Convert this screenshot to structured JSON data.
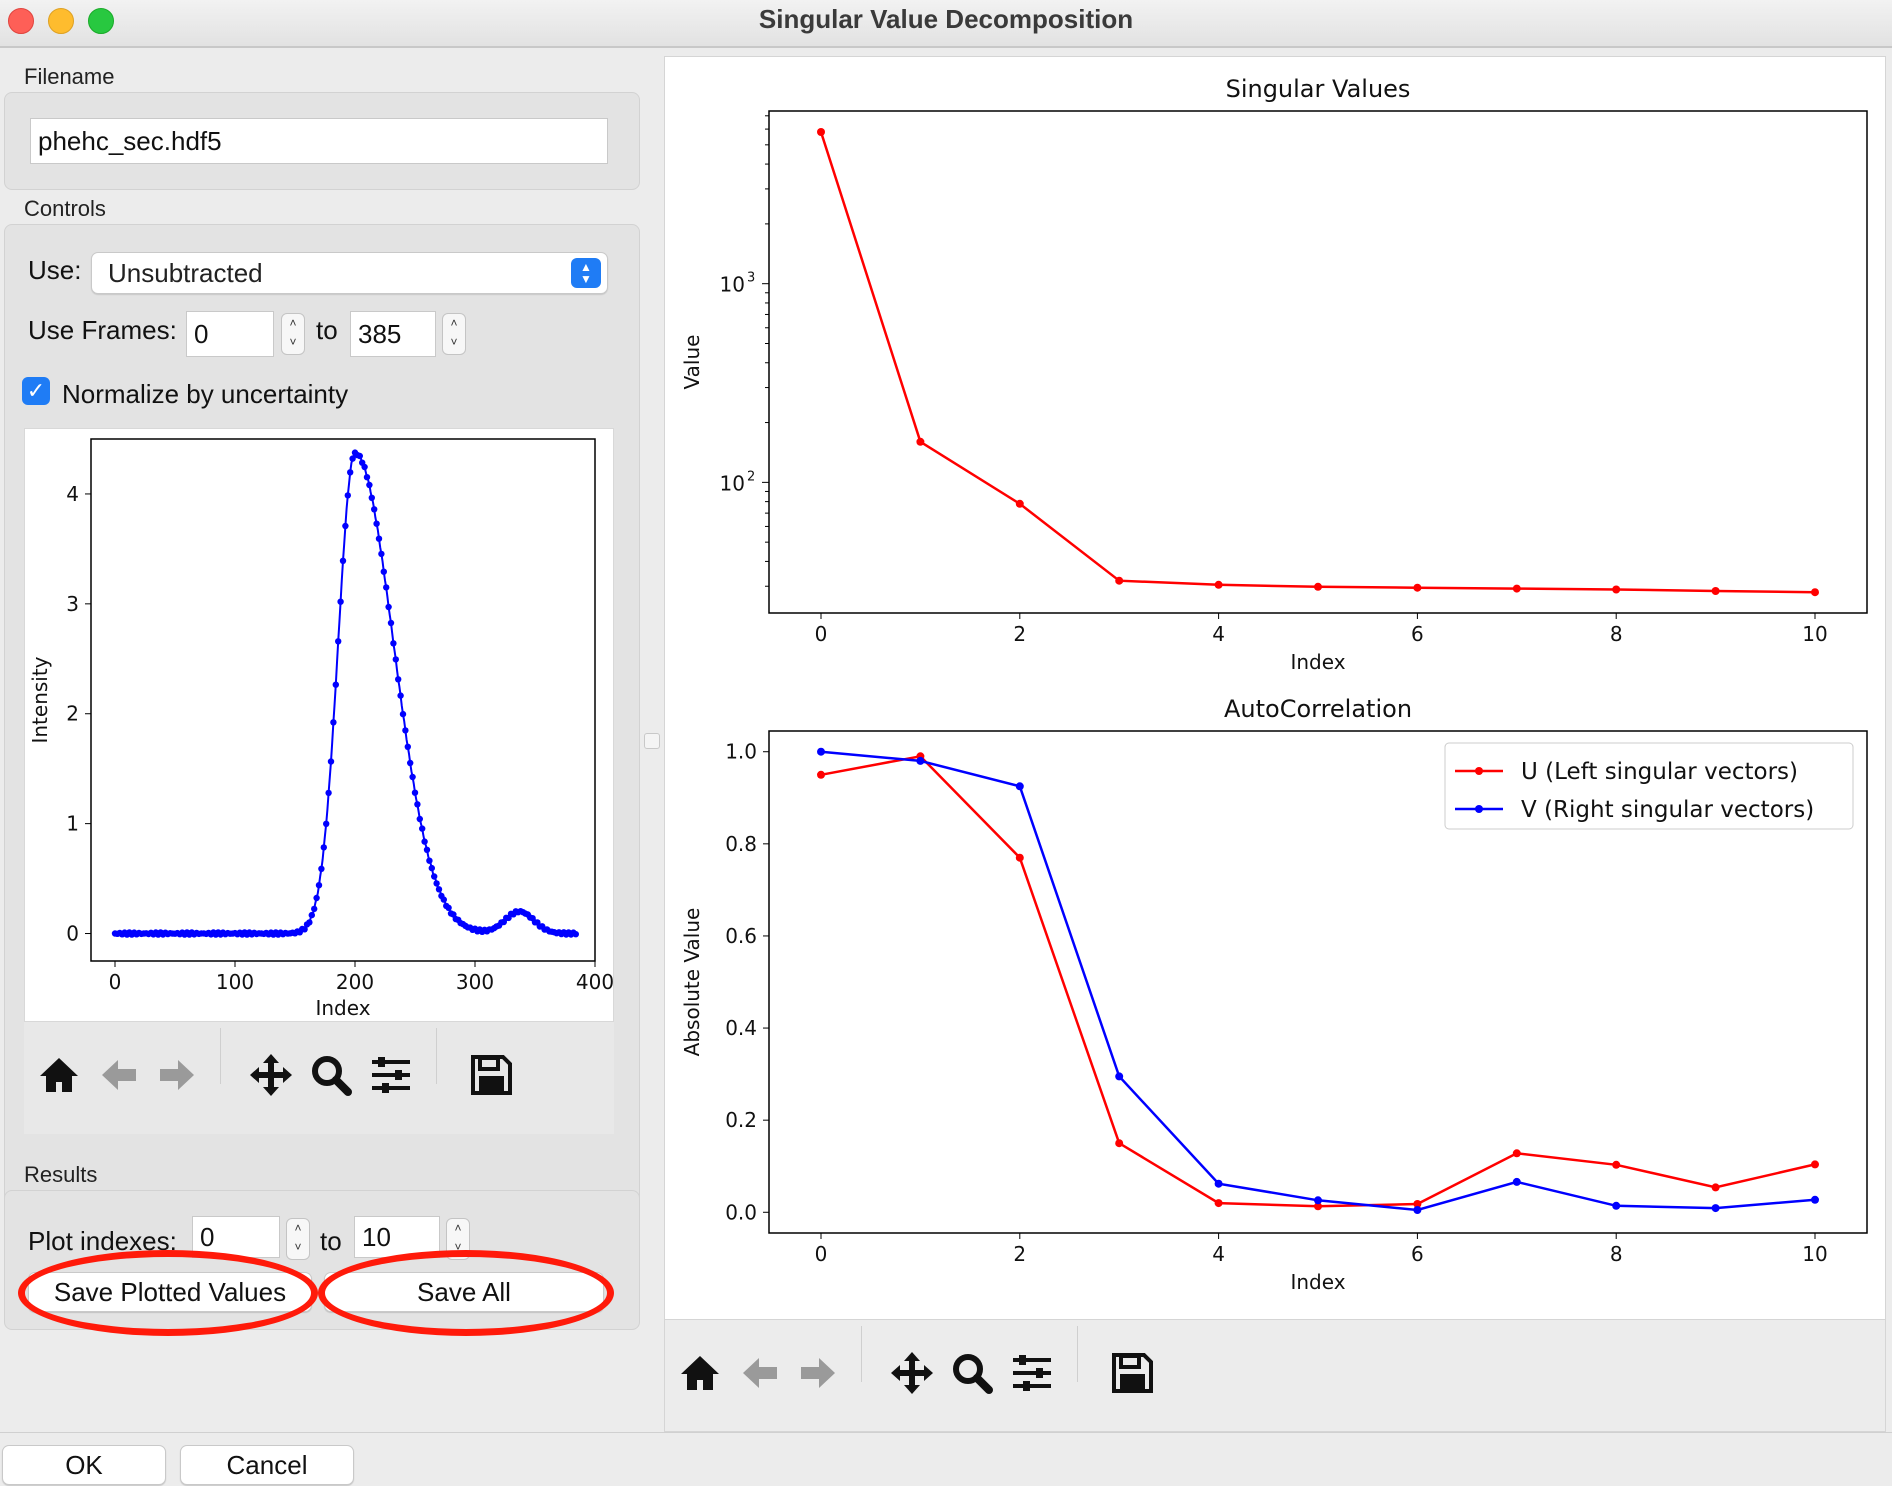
{
  "window": {
    "title": "Singular Value Decomposition"
  },
  "filename_section": {
    "label": "Filename",
    "value": "phehc_sec.hdf5"
  },
  "controls": {
    "label": "Controls",
    "use_label": "Use:",
    "use_value": "Unsubtracted",
    "frames_label": "Use Frames:",
    "frames_start": "0",
    "frames_to": "to",
    "frames_end": "385",
    "normalize_label": "Normalize by uncertainty",
    "normalize_checked": true
  },
  "intensity_chart": {
    "chart_data": {
      "type": "scatter",
      "title": "",
      "xlabel": "Index",
      "ylabel": "Intensity",
      "xlim": [
        -20,
        400
      ],
      "ylim": [
        -0.25,
        4.5
      ],
      "xticks": [
        "0",
        "100",
        "200",
        "300",
        "400"
      ],
      "yticks": [
        "0",
        "1",
        "2",
        "3",
        "4"
      ],
      "color": "#0000ff",
      "peaks": [
        {
          "center": 200,
          "height": 4.37,
          "width": 14,
          "tail": 32
        },
        {
          "center": 337,
          "height": 0.2,
          "width": 12,
          "tail": 12
        }
      ],
      "n_points": 386
    }
  },
  "results": {
    "label": "Results",
    "plot_indexes_label": "Plot indexes:",
    "index_start": "0",
    "index_to": "to",
    "index_end": "10",
    "save_plotted_label": "Save Plotted Values",
    "save_all_label": "Save All"
  },
  "singular_values_chart": {
    "chart_data": {
      "type": "line",
      "title": "Singular Values",
      "xlabel": "Index",
      "ylabel": "Value",
      "yscale": "log",
      "x": [
        0,
        1,
        2,
        3,
        4,
        5,
        6,
        7,
        8,
        9,
        10
      ],
      "values": [
        5800,
        160,
        78,
        32,
        30.5,
        29.8,
        29.5,
        29.2,
        28.9,
        28.4,
        28.0
      ],
      "xticks": [
        "0",
        "2",
        "4",
        "6",
        "8",
        "10"
      ],
      "ytick_labels": [
        "10",
        "10"
      ],
      "ytick_exponents": [
        "2",
        "3"
      ],
      "color": "#ff0000"
    }
  },
  "autocorrelation_chart": {
    "chart_data": {
      "type": "line",
      "title": "AutoCorrelation",
      "xlabel": "Index",
      "ylabel": "Absolute Value",
      "ylim": [
        -0.045,
        1.045
      ],
      "x": [
        0,
        1,
        2,
        3,
        4,
        5,
        6,
        7,
        8,
        9,
        10
      ],
      "xticks": [
        "0",
        "2",
        "4",
        "6",
        "8",
        "10"
      ],
      "yticks": [
        "0.0",
        "0.2",
        "0.4",
        "0.6",
        "0.8",
        "1.0"
      ],
      "legend_position": "top-right",
      "series": [
        {
          "name": "U (Left singular vectors)",
          "color": "#ff0000",
          "values": [
            0.95,
            0.99,
            0.77,
            0.15,
            0.02,
            0.013,
            0.018,
            0.128,
            0.103,
            0.054,
            0.104
          ]
        },
        {
          "name": "V (Right singular vectors)",
          "color": "#0000ff",
          "values": [
            1.0,
            0.98,
            0.925,
            0.295,
            0.062,
            0.026,
            0.005,
            0.066,
            0.014,
            0.009,
            0.027
          ]
        }
      ]
    }
  },
  "toolbar_icons": [
    "home-icon",
    "back-arrow-icon",
    "forward-arrow-icon",
    "pan-icon",
    "zoom-icon",
    "configure-subplots-icon",
    "save-icon"
  ],
  "highlight_color": "#ff1a0a",
  "footer": {
    "ok_label": "OK",
    "cancel_label": "Cancel"
  }
}
